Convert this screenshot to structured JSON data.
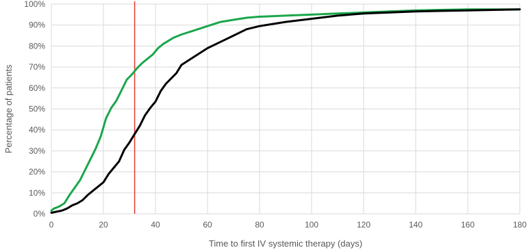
{
  "chart_data": {
    "type": "line",
    "title": "",
    "xlabel": "Time to first IV systemic therapy (days)",
    "ylabel": "Percentage of patients",
    "xlim": [
      0,
      180
    ],
    "ylim": [
      0,
      100
    ],
    "x_ticks": [
      0,
      20,
      40,
      60,
      80,
      100,
      120,
      140,
      160,
      180
    ],
    "y_ticks": [
      0,
      10,
      20,
      30,
      40,
      50,
      60,
      70,
      80,
      90,
      100
    ],
    "y_tick_suffix": "%",
    "grid": true,
    "reference_line": {
      "x": 32,
      "color": "#e03c31"
    },
    "series": [
      {
        "color": "#1aa64b",
        "x": [
          0,
          1,
          3,
          5,
          7,
          9,
          11,
          13,
          15,
          17,
          19,
          21,
          23,
          25,
          27,
          29,
          31,
          33,
          35,
          37,
          39,
          41,
          43,
          45,
          47,
          50,
          55,
          60,
          65,
          70,
          75,
          80,
          90,
          100,
          110,
          120,
          140,
          160,
          180
        ],
        "y": [
          1.5,
          2.5,
          3.5,
          5,
          9,
          12.5,
          16,
          21,
          26,
          31,
          37,
          45.5,
          50.5,
          54,
          59,
          64,
          66.5,
          69.5,
          72,
          74,
          76,
          79,
          81,
          82.5,
          84,
          85.5,
          87.5,
          89.5,
          91.5,
          92.5,
          93.5,
          94,
          94.5,
          95,
          95.5,
          96,
          97,
          97.5,
          97.5
        ]
      },
      {
        "color": "#000000",
        "x": [
          0,
          2,
          4,
          6,
          8,
          10,
          12,
          14,
          16,
          18,
          20,
          22,
          24,
          26,
          28,
          30,
          32,
          34,
          36,
          38,
          40,
          42,
          44,
          46,
          48,
          50,
          55,
          60,
          65,
          70,
          75,
          80,
          90,
          100,
          110,
          120,
          140,
          160,
          180
        ],
        "y": [
          0.5,
          1,
          1.5,
          2.5,
          4,
          5,
          6.5,
          9,
          11,
          13,
          15,
          19,
          22,
          25,
          30.5,
          34,
          38,
          42,
          47,
          50.5,
          53.5,
          58.5,
          62,
          64.5,
          67,
          71,
          75,
          79,
          82,
          85,
          88,
          89.5,
          91.5,
          93,
          94.5,
          95.5,
          96.5,
          97,
          97.5
        ]
      }
    ]
  }
}
